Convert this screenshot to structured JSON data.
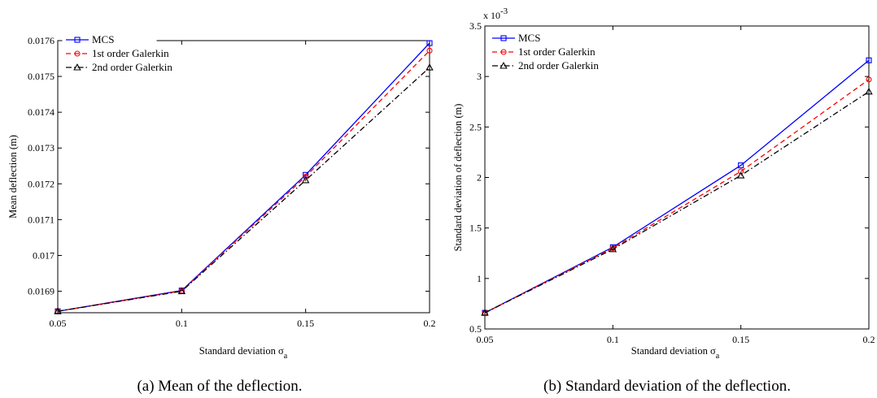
{
  "chart_data": [
    {
      "type": "line",
      "caption": "(a) Mean of the deflection.",
      "xlabel_main": "Standard deviation σ",
      "xlabel_sub": "a",
      "ylabel": "Mean deflection (m)",
      "xlim": [
        0.05,
        0.2
      ],
      "ylim": [
        0.01684,
        0.0176
      ],
      "xticks": [
        {
          "v": 0.05,
          "label": "0.05"
        },
        {
          "v": 0.1,
          "label": "0.1"
        },
        {
          "v": 0.15,
          "label": "0.15"
        },
        {
          "v": 0.2,
          "label": "0.2"
        }
      ],
      "yticks": [
        {
          "v": 0.0169,
          "label": "0.0169"
        },
        {
          "v": 0.017,
          "label": "0.017"
        },
        {
          "v": 0.0171,
          "label": "0.0171"
        },
        {
          "v": 0.0172,
          "label": "0.0172"
        },
        {
          "v": 0.0173,
          "label": "0.0173"
        },
        {
          "v": 0.0174,
          "label": "0.0174"
        },
        {
          "v": 0.0175,
          "label": "0.0175"
        },
        {
          "v": 0.0176,
          "label": "0.0176"
        }
      ],
      "exponent": "",
      "x": [
        0.05,
        0.1,
        0.15,
        0.2
      ],
      "legend_position": "top-left",
      "series": [
        {
          "name": "MCS",
          "values": [
            0.016844,
            0.016902,
            0.017225,
            0.017593
          ],
          "color": "#0000ff",
          "dash": "solid",
          "marker": "square"
        },
        {
          "name": "1st order Galerkin",
          "values": [
            0.016844,
            0.016901,
            0.01722,
            0.017572
          ],
          "color": "#ff0000",
          "dash": "dashed",
          "marker": "circle"
        },
        {
          "name": "2nd order Galerkin",
          "values": [
            0.016844,
            0.0169,
            0.01721,
            0.017525
          ],
          "color": "#000000",
          "dash": "dashdot",
          "marker": "triangle"
        }
      ]
    },
    {
      "type": "line",
      "caption": "(b) Standard deviation of the deflection.",
      "xlabel_main": "Standard deviation σ",
      "xlabel_sub": "a",
      "ylabel": "Standard deviation of deflection (m)",
      "xlim": [
        0.05,
        0.2
      ],
      "ylim": [
        0.5,
        3.5
      ],
      "xticks": [
        {
          "v": 0.05,
          "label": "0.05"
        },
        {
          "v": 0.1,
          "label": "0.1"
        },
        {
          "v": 0.15,
          "label": "0.15"
        },
        {
          "v": 0.2,
          "label": "0.2"
        }
      ],
      "yticks": [
        {
          "v": 0.5,
          "label": "0.5"
        },
        {
          "v": 1,
          "label": "1"
        },
        {
          "v": 1.5,
          "label": "1.5"
        },
        {
          "v": 2,
          "label": "2"
        },
        {
          "v": 2.5,
          "label": "2.5"
        },
        {
          "v": 3,
          "label": "3"
        },
        {
          "v": 3.5,
          "label": "3.5"
        }
      ],
      "exponent": "x 10",
      "exponent_power": "-3",
      "x": [
        0.05,
        0.1,
        0.15,
        0.2
      ],
      "legend_position": "top-left",
      "series": [
        {
          "name": "MCS",
          "values": [
            0.66,
            1.31,
            2.12,
            3.16
          ],
          "color": "#0000ff",
          "dash": "solid",
          "marker": "square"
        },
        {
          "name": "1st order Galerkin",
          "values": [
            0.66,
            1.3,
            2.06,
            2.97
          ],
          "color": "#ff0000",
          "dash": "dashed",
          "marker": "circle"
        },
        {
          "name": "2nd order Galerkin",
          "values": [
            0.66,
            1.29,
            2.02,
            2.85
          ],
          "color": "#000000",
          "dash": "dashdot",
          "marker": "triangle"
        }
      ]
    }
  ]
}
